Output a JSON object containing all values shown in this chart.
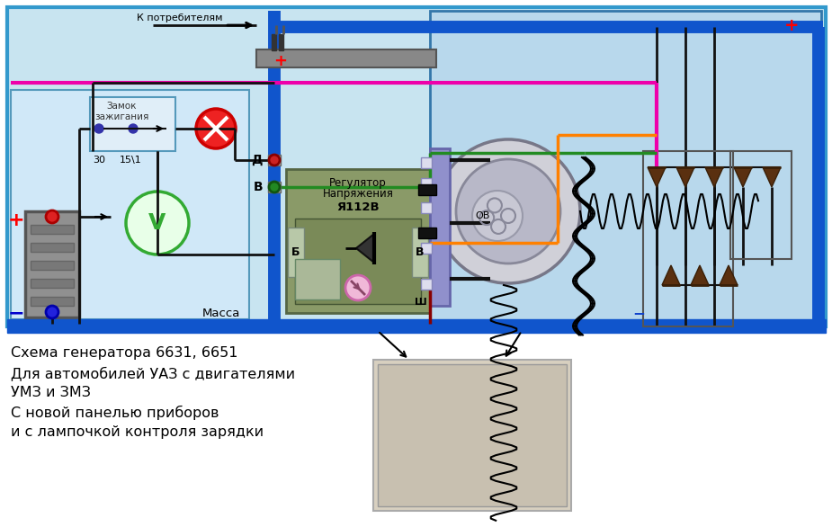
{
  "subtitle_lines": [
    "Схема генератора 6631, 6651",
    "Для автомобилей УАЗ с двигателями",
    "УМЗ и ЗМЗ",
    "С новой панелью приборов",
    "и с лампочкой контроля зарядки"
  ],
  "bg_color": "#ffffff",
  "main_bg": "#c8e4f0",
  "left_panel_bg": "#d8eef8",
  "wire_blue": "#1055cc",
  "wire_green": "#228b22",
  "wire_pink": "#ee00aa",
  "wire_orange": "#ff8000",
  "wire_red": "#cc0000",
  "wire_black": "#111111",
  "wire_gray": "#888888",
  "wire_dark_red": "#880000"
}
